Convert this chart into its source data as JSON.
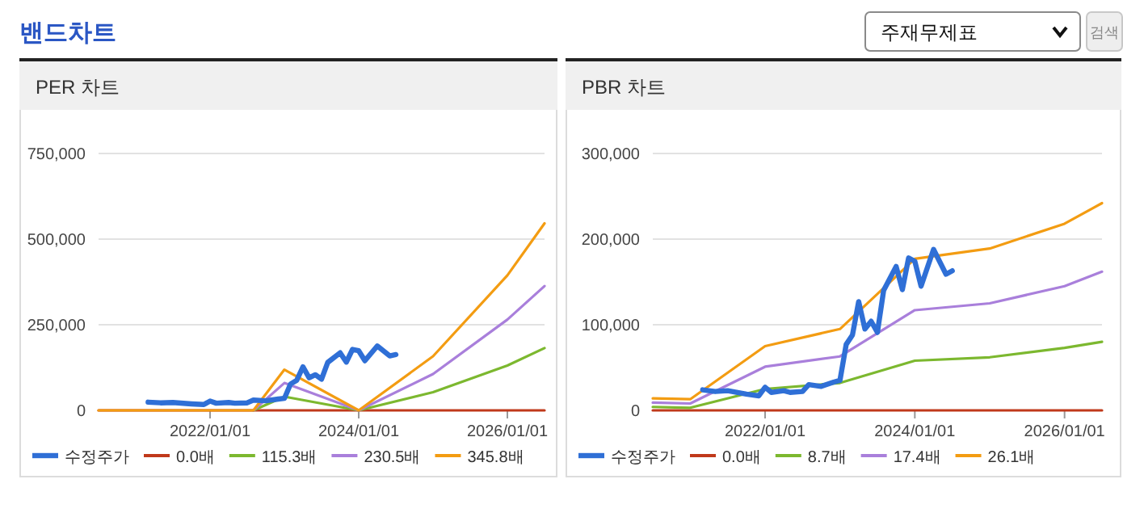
{
  "chart_data": [
    {
      "type": "other",
      "title": "밴드차트",
      "annotations": [
        "주재무제표",
        "검색"
      ]
    },
    {
      "type": "line",
      "title": "PER 차트",
      "xlim": [
        "2020-07",
        "2026-07"
      ],
      "ylim": [
        0,
        750000
      ],
      "xticks": [
        {
          "value": "2022-01-01",
          "label": "2022/01/01"
        },
        {
          "value": "2024-01-01",
          "label": "2024/01/01"
        },
        {
          "value": "2026-01-01",
          "label": "2026/01/01"
        }
      ],
      "yticks": [
        0,
        {
          "value": 250000,
          "label": "250,000"
        },
        {
          "value": 500000,
          "label": "500,000"
        },
        {
          "value": 750000,
          "label": "750,000"
        }
      ],
      "grid": "y",
      "legend": "bottom",
      "marker": "none",
      "series": [
        {
          "name": "수정주가",
          "color": "#2f6fd6",
          "x": [
            "2021-03",
            "2021-05",
            "2021-07",
            "2021-10",
            "2021-12",
            "2022-01",
            "2022-02",
            "2022-04",
            "2022-05",
            "2022-07",
            "2022-08",
            "2022-10",
            "2022-12",
            "2023-01",
            "2023-02",
            "2023-03",
            "2023-04",
            "2023-05",
            "2023-06",
            "2023-07",
            "2023-08",
            "2023-10",
            "2023-11",
            "2023-12",
            "2024-01",
            "2024-02",
            "2024-04",
            "2024-06",
            "2024-07"
          ],
          "values": [
            24000,
            22000,
            23000,
            19000,
            17000,
            27000,
            21000,
            23000,
            21000,
            22000,
            30000,
            28000,
            33000,
            35000,
            77000,
            88000,
            127000,
            95000,
            104000,
            91000,
            140000,
            168000,
            141000,
            178000,
            174000,
            145000,
            188000,
            159000,
            163000
          ]
        },
        {
          "name": "0.0배",
          "color": "#c0391b",
          "x": [
            "2020-07",
            "2021-01",
            "2022-01",
            "2022-08",
            "2023-01",
            "2024-01",
            "2025-01",
            "2026-01",
            "2026-07"
          ],
          "values": [
            0,
            0,
            0,
            0,
            0,
            0,
            0,
            0,
            0
          ]
        },
        {
          "name": "115.3배",
          "color": "#7cb82f",
          "x": [
            "2022-08",
            "2023-01",
            "2024-01",
            "2025-01",
            "2026-01",
            "2026-07"
          ],
          "values": [
            0,
            40000,
            0,
            53000,
            131000,
            182000
          ]
        },
        {
          "name": "230.5배",
          "color": "#a97fdb",
          "x": [
            "2022-08",
            "2023-01",
            "2024-01",
            "2025-01",
            "2026-01",
            "2026-07"
          ],
          "values": [
            0,
            80000,
            0,
            106000,
            265000,
            363000
          ]
        },
        {
          "name": "345.8배",
          "color": "#f39c12",
          "x": [
            "2020-07",
            "2021-01",
            "2022-01",
            "2022-08",
            "2023-01",
            "2024-01",
            "2025-01",
            "2026-01",
            "2026-07"
          ],
          "values": [
            0,
            0,
            0,
            0,
            119000,
            0,
            158000,
            394000,
            546000
          ]
        }
      ]
    },
    {
      "type": "line",
      "title": "PBR 차트",
      "xlim": [
        "2020-07",
        "2026-07"
      ],
      "ylim": [
        0,
        300000
      ],
      "xticks": [
        {
          "value": "2022-01-01",
          "label": "2022/01/01"
        },
        {
          "value": "2024-01-01",
          "label": "2024/01/01"
        },
        {
          "value": "2026-01-01",
          "label": "2026/01/01"
        }
      ],
      "yticks": [
        0,
        {
          "value": 100000,
          "label": "100,000"
        },
        {
          "value": 200000,
          "label": "200,000"
        },
        {
          "value": 300000,
          "label": "300,000"
        }
      ],
      "grid": "y",
      "legend": "bottom",
      "marker": "none",
      "series": [
        {
          "name": "수정주가",
          "color": "#2f6fd6",
          "x": [
            "2021-03",
            "2021-05",
            "2021-07",
            "2021-10",
            "2021-12",
            "2022-01",
            "2022-02",
            "2022-04",
            "2022-05",
            "2022-07",
            "2022-08",
            "2022-10",
            "2022-12",
            "2023-01",
            "2023-02",
            "2023-03",
            "2023-04",
            "2023-05",
            "2023-06",
            "2023-07",
            "2023-08",
            "2023-10",
            "2023-11",
            "2023-12",
            "2024-01",
            "2024-02",
            "2024-04",
            "2024-06",
            "2024-07"
          ],
          "values": [
            24000,
            22000,
            23000,
            19000,
            17000,
            27000,
            21000,
            23000,
            21000,
            22000,
            30000,
            28000,
            33000,
            35000,
            77000,
            88000,
            127000,
            95000,
            104000,
            91000,
            140000,
            168000,
            141000,
            178000,
            174000,
            145000,
            188000,
            159000,
            163000
          ]
        },
        {
          "name": "0.0배",
          "color": "#c0391b",
          "x": [
            "2020-07",
            "2021-01",
            "2022-01",
            "2023-01",
            "2024-01",
            "2025-01",
            "2026-01",
            "2026-07"
          ],
          "values": [
            0,
            0,
            0,
            0,
            0,
            0,
            0,
            0
          ]
        },
        {
          "name": "8.7배",
          "color": "#7cb82f",
          "x": [
            "2020-07",
            "2021-01",
            "2022-01",
            "2023-01",
            "2024-01",
            "2025-01",
            "2026-01",
            "2026-07"
          ],
          "values": [
            4000,
            3000,
            25000,
            32000,
            58000,
            62000,
            73000,
            80000
          ]
        },
        {
          "name": "17.4배",
          "color": "#a97fdb",
          "x": [
            "2020-07",
            "2021-01",
            "2022-01",
            "2023-01",
            "2024-01",
            "2025-01",
            "2026-01",
            "2026-07"
          ],
          "values": [
            9000,
            8000,
            51000,
            63000,
            117000,
            125000,
            145000,
            162000
          ]
        },
        {
          "name": "26.1배",
          "color": "#f39c12",
          "x": [
            "2020-07",
            "2021-01",
            "2022-01",
            "2023-01",
            "2024-01",
            "2025-01",
            "2026-01",
            "2026-07"
          ],
          "values": [
            14000,
            13000,
            75000,
            95000,
            177000,
            189000,
            218000,
            242000
          ]
        }
      ]
    }
  ]
}
